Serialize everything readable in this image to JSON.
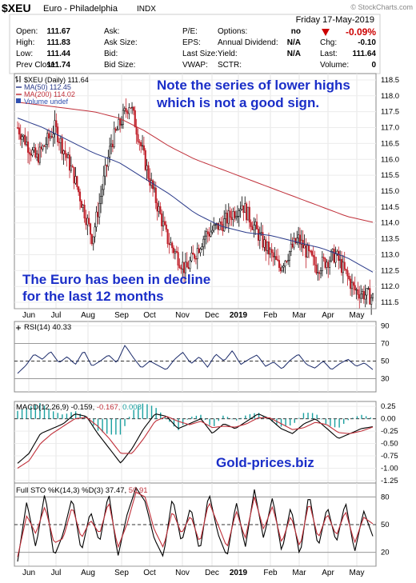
{
  "header": {
    "symbol": "$XEU",
    "name": "Euro - Philadelphia",
    "exchange": "INDX",
    "watermark": "© StockCharts.com",
    "date": "Friday   17-May-2019",
    "quote_rows": [
      [
        {
          "label": "Open:",
          "value": "111.67"
        },
        {
          "label": "Ask:",
          "value": ""
        },
        {
          "label": "P/E:",
          "value": ""
        },
        {
          "label": "Options:",
          "value": "no"
        },
        {
          "label": "",
          "value": ""
        }
      ],
      [
        {
          "label": "High:",
          "value": "111.83"
        },
        {
          "label": "Ask Size:",
          "value": ""
        },
        {
          "label": "EPS:",
          "value": ""
        },
        {
          "label": "Annual Dividend:",
          "value": "N/A"
        },
        {
          "label": "Chg:",
          "value": "-0.10"
        }
      ],
      [
        {
          "label": "Low:",
          "value": "111.44"
        },
        {
          "label": "Bid:",
          "value": ""
        },
        {
          "label": "Last Size:",
          "value": ""
        },
        {
          "label": "Yield:",
          "value": "N/A"
        },
        {
          "label": "Last:",
          "value": "111.64"
        }
      ],
      [
        {
          "label": "Prev Close:",
          "value": "111.74"
        },
        {
          "label": "Bid Size:",
          "value": ""
        },
        {
          "label": "VWAP:",
          "value": ""
        },
        {
          "label": "SCTR:",
          "value": ""
        },
        {
          "label": "Volume:",
          "value": "0"
        }
      ]
    ],
    "pct_change": "-0.09%",
    "down_color": "#cc0000"
  },
  "price_legend": [
    {
      "icon": "ohlc-bar-icon",
      "text": "$XEU (Daily) 111.64",
      "color": "#000000"
    },
    {
      "icon": "line-icon",
      "text": "MA(50) 112.45",
      "color": "#2a3a8a"
    },
    {
      "icon": "line-icon",
      "text": "MA(200) 114.02",
      "color": "#c0303a"
    },
    {
      "icon": "volume-icon",
      "text": "Volume undef",
      "color": "#3050b0"
    }
  ],
  "annotations": {
    "note": [
      "Note the series of lower highs",
      "which is not a good sign."
    ],
    "decline": [
      "The Euro has been in decline",
      "for the last 12 months"
    ],
    "site": "Gold-prices.biz",
    "color": "#1a2ec8"
  },
  "panel_labels": {
    "rsi": {
      "name": "RSI(14)",
      "value": "40.33"
    },
    "macd": {
      "name": "MACD(12,26,9)",
      "v1": "-0.159,",
      "v2": "-0.167,",
      "v3": "0.008",
      "c2": "#c0303a",
      "c3": "#1aa0a0"
    },
    "sto": {
      "name": "Full STO %K(14,3) %D(3)",
      "v1": "37.47,",
      "v2": "50.91",
      "c2": "#c0303a"
    }
  },
  "x_axis_labels": [
    "Jun",
    "Jul",
    "Aug",
    "Sep",
    "Oct",
    "Nov",
    "Dec",
    "2019",
    "Feb",
    "Mar",
    "Apr",
    "May"
  ],
  "chart_data": [
    {
      "type": "candlestick",
      "title": "$XEU (Daily) 111.64",
      "ylim": [
        111.3,
        118.7
      ],
      "y_ticks": [
        "111.5",
        "112.0",
        "112.5",
        "113.0",
        "113.5",
        "114.0",
        "114.5",
        "115.0",
        "115.5",
        "116.0",
        "116.5",
        "117.0",
        "117.5",
        "118.0",
        "118.5"
      ],
      "x_labels": [
        "Jun",
        "Jul",
        "Aug",
        "Sep",
        "Oct",
        "Nov",
        "Dec",
        "2019",
        "Feb",
        "Mar",
        "Apr",
        "May"
      ],
      "key_points": [
        {
          "x": "Jun",
          "y": 117.0
        },
        {
          "x": "mid-Jun",
          "y": 116.0
        },
        {
          "x": "Jul",
          "y": 117.0
        },
        {
          "x": "Aug",
          "y": 115.5
        },
        {
          "x": "mid-Aug",
          "y": 113.5
        },
        {
          "x": "Sep",
          "y": 116.5
        },
        {
          "x": "late-Sep",
          "y": 117.8
        },
        {
          "x": "Oct",
          "y": 115.5
        },
        {
          "x": "Nov",
          "y": 113.5
        },
        {
          "x": "mid-Nov",
          "y": 112.5
        },
        {
          "x": "Dec",
          "y": 113.6
        },
        {
          "x": "2019",
          "y": 114.0
        },
        {
          "x": "mid-Jan",
          "y": 114.6
        },
        {
          "x": "Feb",
          "y": 113.5
        },
        {
          "x": "Mar",
          "y": 112.6
        },
        {
          "x": "mid-Mar",
          "y": 113.5
        },
        {
          "x": "Apr",
          "y": 112.6
        },
        {
          "x": "mid-Apr",
          "y": 113.0
        },
        {
          "x": "May",
          "y": 111.9
        },
        {
          "x": "end",
          "y": 111.64
        }
      ],
      "series": [
        {
          "name": "MA(50)",
          "last": 112.45,
          "values": [
            117.3,
            117.0,
            116.6,
            116.2,
            115.9,
            115.4,
            114.9,
            114.3,
            113.9,
            113.7,
            113.6,
            113.4,
            113.2,
            112.9,
            112.45
          ]
        },
        {
          "name": "MA(200)",
          "last": 114.02,
          "values": [
            117.8,
            117.7,
            117.6,
            117.5,
            117.3,
            116.9,
            116.4,
            116.0,
            115.7,
            115.4,
            115.1,
            114.8,
            114.5,
            114.2,
            114.02
          ]
        }
      ]
    },
    {
      "type": "line",
      "title": "RSI(14) 40.33",
      "ylim": [
        15,
        95
      ],
      "y_ticks": [
        "90",
        "70",
        "50",
        "30",
        "10"
      ],
      "reference_lines": [
        70,
        50,
        30
      ],
      "values": [
        36,
        45,
        58,
        52,
        61,
        48,
        55,
        46,
        62,
        44,
        50,
        57,
        48,
        68,
        54,
        42,
        50,
        45,
        40,
        52,
        60,
        47,
        55,
        43,
        58,
        50,
        62,
        46,
        52,
        57,
        44,
        49,
        41,
        51,
        58,
        46,
        42,
        50,
        40,
        47,
        52,
        44,
        48,
        40.33
      ]
    },
    {
      "type": "line",
      "title": "MACD(12,26,9)",
      "ylim": [
        -1.3,
        0.35
      ],
      "y_ticks": [
        "0.25",
        "0.00",
        "-0.25",
        "-0.50",
        "-0.75",
        "-1.00",
        "-1.25"
      ],
      "series": [
        {
          "name": "MACD",
          "last": -0.159,
          "values": [
            -0.9,
            -0.7,
            -0.3,
            -0.2,
            -0.1,
            0.1,
            0.05,
            -0.3,
            -0.6,
            -0.9,
            -0.6,
            -0.2,
            0.1,
            0.05,
            -0.2,
            -0.1,
            0.0,
            -0.3,
            -0.1,
            -0.2,
            -0.05,
            0.1,
            0.0,
            -0.2,
            -0.3,
            -0.1,
            0.0,
            -0.2,
            -0.4,
            -0.3,
            -0.2,
            -0.159
          ]
        },
        {
          "name": "Signal",
          "last": -0.167,
          "values": [
            -1.0,
            -0.85,
            -0.5,
            -0.3,
            -0.15,
            0.0,
            0.03,
            -0.15,
            -0.4,
            -0.7,
            -0.7,
            -0.4,
            -0.05,
            0.05,
            -0.05,
            -0.12,
            -0.05,
            -0.18,
            -0.15,
            -0.17,
            -0.1,
            0.02,
            0.02,
            -0.1,
            -0.22,
            -0.18,
            -0.07,
            -0.12,
            -0.28,
            -0.3,
            -0.25,
            -0.167
          ]
        },
        {
          "name": "Histogram",
          "last": 0.008
        }
      ]
    },
    {
      "type": "line",
      "title": "Full STO %K(14,3) %D(3)",
      "ylim": [
        5,
        95
      ],
      "y_ticks": [
        "80",
        "50",
        "20"
      ],
      "reference_lines": [
        80,
        50,
        20
      ],
      "series": [
        {
          "name": "%K",
          "last": 37.47,
          "values": [
            10,
            75,
            25,
            85,
            15,
            40,
            80,
            20,
            65,
            30,
            85,
            15,
            60,
            90,
            75,
            35,
            15,
            80,
            30,
            70,
            20,
            85,
            40,
            15,
            75,
            25,
            88,
            35,
            80,
            20,
            70,
            15,
            85,
            25,
            70,
            30,
            75,
            20,
            65,
            37.47
          ]
        },
        {
          "name": "%D",
          "last": 50.91,
          "values": [
            15,
            60,
            40,
            70,
            30,
            35,
            70,
            35,
            55,
            40,
            75,
            25,
            50,
            85,
            80,
            45,
            25,
            65,
            40,
            60,
            30,
            75,
            50,
            25,
            65,
            35,
            80,
            45,
            70,
            30,
            60,
            25,
            75,
            35,
            62,
            38,
            65,
            30,
            58,
            50.91
          ]
        }
      ]
    }
  ]
}
